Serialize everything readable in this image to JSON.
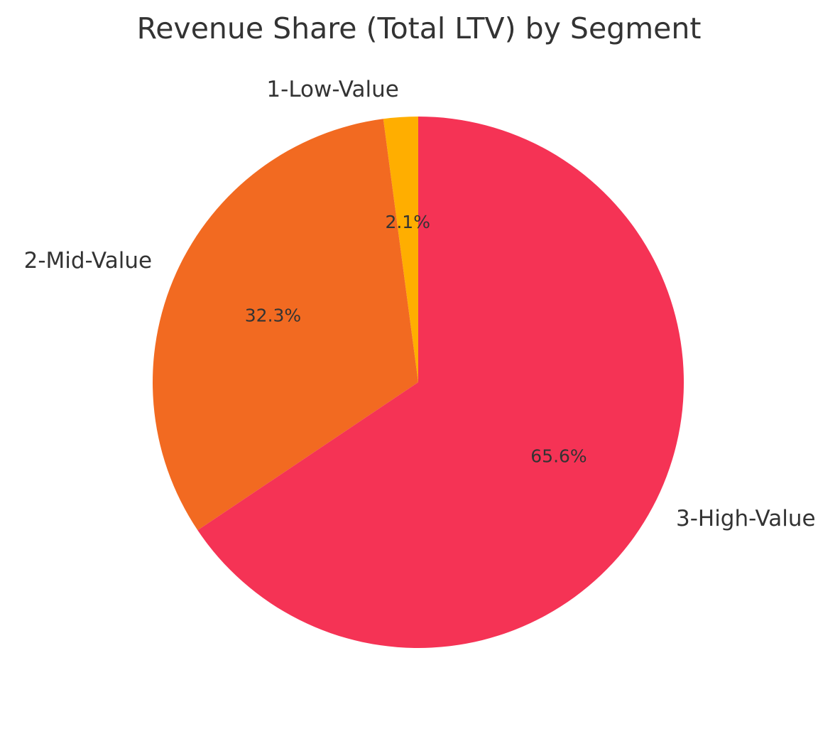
{
  "chart_data": {
    "type": "pie",
    "title": "Revenue Share (Total LTV) by Segment",
    "categories": [
      "1-Low-Value",
      "2-Mid-Value",
      "3-High-Value"
    ],
    "values": [
      2.1,
      32.3,
      65.6
    ],
    "labels": [
      "2.1%",
      "32.3%",
      "65.6%"
    ],
    "colors": [
      "#FFAE00",
      "#F26A21",
      "#F53355"
    ],
    "start_angle": "top",
    "direction": "counterclockwise",
    "legend": "none"
  }
}
